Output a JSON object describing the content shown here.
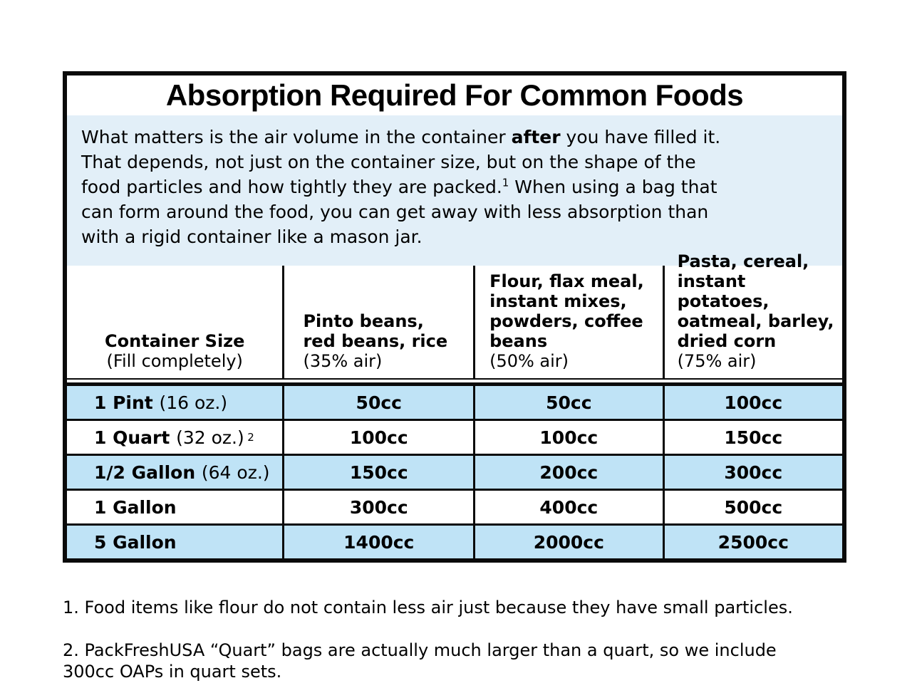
{
  "title": "Absorption Required For Common Foods",
  "intro": {
    "part1": "What matters is the air volume in the container ",
    "bold": "after",
    "part2": " you have filled it.\nThat depends, not just on the container size, but on the shape of the\nfood particles and how tightly they are packed.",
    "sup": "1",
    "part3": " When using a bag that\ncan form around the food, you can get away with less absorption than\nwith a rigid container like a mason jar."
  },
  "table": {
    "columns": [
      {
        "title": "Container Size",
        "subtitle": "(Fill completely)"
      },
      {
        "title": "Pinto beans,\nred beans, rice",
        "subtitle": "(35% air)"
      },
      {
        "title": "Flour, flax meal,\ninstant mixes,\npowders, coffee\nbeans",
        "subtitle": "(50% air)"
      },
      {
        "title": "Pasta, cereal,\ninstant potatoes,\noatmeal, barley,\ndried corn",
        "subtitle": "(75% air)"
      }
    ],
    "rows": [
      {
        "size": "1 Pint",
        "size_note": "(16 oz.)",
        "ref": "",
        "values": [
          "50cc",
          "50cc",
          "100cc"
        ]
      },
      {
        "size": "1 Quart",
        "size_note": "(32 oz.)",
        "ref": "2",
        "values": [
          "100cc",
          "100cc",
          "150cc"
        ]
      },
      {
        "size": "1/2 Gallon",
        "size_note": "(64 oz.)",
        "ref": "",
        "values": [
          "150cc",
          "200cc",
          "300cc"
        ]
      },
      {
        "size": "1 Gallon",
        "size_note": "",
        "ref": "",
        "values": [
          "300cc",
          "400cc",
          "500cc"
        ]
      },
      {
        "size": "5 Gallon",
        "size_note": "",
        "ref": "",
        "values": [
          "1400cc",
          "2000cc",
          "2500cc"
        ]
      }
    ]
  },
  "footnotes": [
    "1. Food items like flour do not contain less air just because they have small particles.",
    "2. PackFreshUSA “Quart” bags are actually much larger than a quart, so we include\n300cc OAPs in quart sets."
  ],
  "colors": {
    "intro_background": "#e2eff8",
    "row_highlight": "#bfe3f6",
    "border": "#0a0a0a",
    "text": "#000000"
  }
}
